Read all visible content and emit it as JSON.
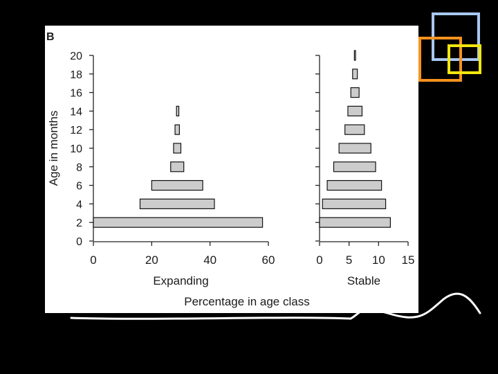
{
  "panel_label": "B",
  "shared_axis_label": "Percentage in age class",
  "decor": {
    "square_colors": [
      "#a9c8f0",
      "#f7931e",
      "#f5e60f"
    ],
    "curve_color": "#ffffff"
  },
  "chart_data": [
    {
      "type": "bar",
      "orientation": "horizontal",
      "style": "population-pyramid",
      "title": "Expanding",
      "xlabel": "Expanding",
      "ylabel": "Age in months",
      "xlim": [
        0,
        60
      ],
      "xticks": [
        "0",
        "20",
        "40",
        "60"
      ],
      "ylim": [
        0,
        20
      ],
      "yticks": [
        "0",
        "2",
        "4",
        "6",
        "8",
        "10",
        "12",
        "14",
        "16",
        "18",
        "20"
      ],
      "categories": [
        "2",
        "4",
        "6",
        "8",
        "10",
        "12",
        "14"
      ],
      "segments": [
        {
          "age": 2,
          "start": 0,
          "end": 58
        },
        {
          "age": 4,
          "start": 16,
          "end": 41.5
        },
        {
          "age": 6,
          "start": 20,
          "end": 37.5
        },
        {
          "age": 8,
          "start": 26.5,
          "end": 31
        },
        {
          "age": 10,
          "start": 27.5,
          "end": 30
        },
        {
          "age": 12,
          "start": 28,
          "end": 29.5
        },
        {
          "age": 14,
          "start": 28.5,
          "end": 29.3
        }
      ],
      "values": [
        58,
        25.5,
        17.5,
        4.5,
        2.5,
        1.5,
        0.8
      ],
      "bar_color": "#cccccc",
      "grid": false
    },
    {
      "type": "bar",
      "orientation": "horizontal",
      "style": "population-pyramid",
      "title": "Stable",
      "xlabel": "Stable",
      "xlim": [
        0,
        15
      ],
      "xticks": [
        "0",
        "5",
        "10",
        "15"
      ],
      "categories": [
        "2",
        "4",
        "6",
        "8",
        "10",
        "12",
        "14",
        "16",
        "18",
        "20"
      ],
      "segments": [
        {
          "age": 2,
          "start": 0,
          "end": 12
        },
        {
          "age": 4,
          "start": 0.5,
          "end": 11.2
        },
        {
          "age": 6,
          "start": 1.3,
          "end": 10.5
        },
        {
          "age": 8,
          "start": 2.4,
          "end": 9.5
        },
        {
          "age": 10,
          "start": 3.3,
          "end": 8.7
        },
        {
          "age": 12,
          "start": 4.3,
          "end": 7.6
        },
        {
          "age": 14,
          "start": 4.8,
          "end": 7.2
        },
        {
          "age": 16,
          "start": 5.3,
          "end": 6.7
        },
        {
          "age": 18,
          "start": 5.6,
          "end": 6.4
        },
        {
          "age": 20,
          "start": 5.9,
          "end": 6.1
        }
      ],
      "values": [
        12,
        10.7,
        9.2,
        7.1,
        5.4,
        3.3,
        2.4,
        1.4,
        0.8,
        0.2
      ],
      "bar_color": "#cccccc",
      "grid": false
    }
  ]
}
